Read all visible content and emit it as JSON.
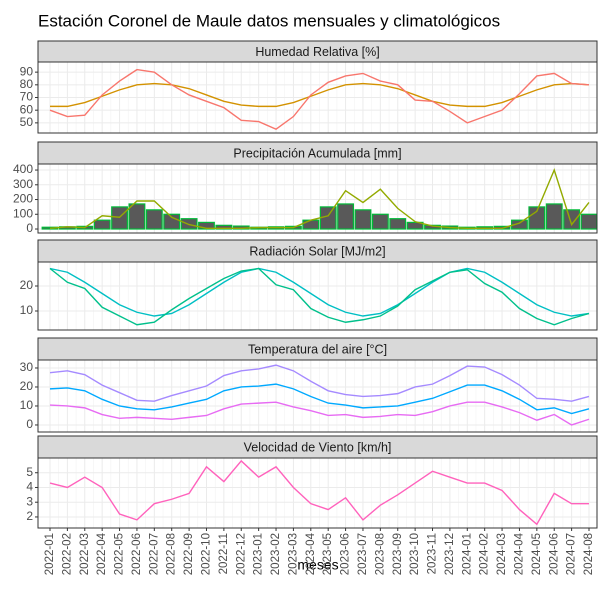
{
  "title": "Estación Coronel de Maule datos mensuales y climatológicos",
  "x_label": "meses",
  "categories": [
    "2022-01",
    "2022-02",
    "2022-03",
    "2022-04",
    "2022-05",
    "2022-06",
    "2022-07",
    "2022-08",
    "2022-09",
    "2022-10",
    "2022-11",
    "2022-12",
    "2023-01",
    "2023-02",
    "2023-03",
    "2023-04",
    "2023-05",
    "2023-06",
    "2023-07",
    "2023-08",
    "2023-09",
    "2023-10",
    "2023-11",
    "2023-12",
    "2024-01",
    "2024-02",
    "2024-03",
    "2024-04",
    "2024-05",
    "2024-06",
    "2024-07",
    "2024-08"
  ],
  "chart_data": [
    {
      "type": "line",
      "title": "Humedad Relativa [%]",
      "ylim": [
        42,
        98
      ],
      "yticks": [
        50,
        60,
        70,
        80,
        90
      ],
      "grid": true,
      "series": [
        {
          "color": "#D39200",
          "values": [
            63,
            63,
            66,
            71,
            76,
            80,
            81,
            80,
            77,
            72,
            67,
            64,
            63,
            63,
            66,
            71,
            76,
            80,
            81,
            80,
            77,
            72,
            67,
            64,
            63,
            63,
            66,
            71,
            76,
            80,
            81,
            80
          ]
        },
        {
          "color": "#F8766D",
          "values": [
            60,
            55,
            56,
            72,
            83,
            92,
            90,
            80,
            72,
            67,
            62,
            52,
            51,
            45,
            55,
            72,
            82,
            87,
            89,
            83,
            80,
            68,
            67,
            59,
            50,
            55,
            60,
            73,
            87,
            89,
            81,
            80
          ]
        }
      ]
    },
    {
      "type": "line",
      "title": "Precipitación Acumulada [mm]",
      "ylim": [
        -27,
        441
      ],
      "yticks": [
        0,
        100,
        200,
        300,
        400
      ],
      "grid": true,
      "series": [
        {
          "type": "bar",
          "color": "#595959",
          "stroke": "#00BA38",
          "values": [
            12,
            15,
            18,
            60,
            150,
            170,
            130,
            100,
            70,
            45,
            25,
            20,
            12,
            15,
            18,
            60,
            150,
            170,
            130,
            100,
            70,
            45,
            25,
            20,
            12,
            15,
            18,
            60,
            150,
            170,
            130,
            100
          ]
        },
        {
          "color": "#93AA00",
          "values": [
            5,
            15,
            10,
            90,
            80,
            190,
            190,
            80,
            30,
            5,
            5,
            5,
            10,
            10,
            10,
            60,
            90,
            260,
            180,
            270,
            140,
            50,
            20,
            10,
            5,
            5,
            5,
            40,
            120,
            400,
            30,
            180
          ]
        }
      ]
    },
    {
      "type": "line",
      "title": "Radiación Solar [MJ/m2]",
      "ylim": [
        2.4,
        29.6
      ],
      "yticks": [
        10,
        20
      ],
      "grid": true,
      "series": [
        {
          "color": "#00BFC4",
          "values": [
            27,
            25.5,
            21.5,
            17,
            12.5,
            9.5,
            8,
            9,
            12.5,
            17,
            21.5,
            25.5,
            27,
            25.5,
            21.5,
            17,
            12.5,
            9.5,
            8,
            9,
            12.5,
            17,
            21.5,
            25.5,
            27,
            25.5,
            21.5,
            17,
            12.5,
            9.5,
            8,
            9
          ]
        },
        {
          "color": "#00C08B",
          "values": [
            27,
            21.5,
            19,
            11.5,
            8,
            4.5,
            5.5,
            10.5,
            15,
            19,
            23,
            26,
            27,
            20.5,
            18.5,
            11,
            7.5,
            5.5,
            6.5,
            8,
            12,
            18.5,
            22,
            25.5,
            26.5,
            21,
            17.5,
            11,
            7,
            4.5,
            7,
            9
          ]
        }
      ]
    },
    {
      "type": "line",
      "title": "Temperatura del aire [°C]",
      "ylim": [
        -3.7,
        34.2
      ],
      "yticks": [
        0,
        10,
        20,
        30
      ],
      "grid": true,
      "series": [
        {
          "color": "#A58AFF",
          "values": [
            27.5,
            28.5,
            26.5,
            21,
            17,
            13,
            12.5,
            15.5,
            18,
            20.5,
            26,
            28.5,
            29.5,
            31.5,
            28.5,
            23,
            18,
            16,
            15,
            15.5,
            16.5,
            20,
            21.5,
            26,
            31,
            30.5,
            26.5,
            21,
            14,
            13.5,
            12.5,
            15
          ]
        },
        {
          "color": "#00A9FF",
          "values": [
            19,
            19.5,
            18,
            13.5,
            10,
            8.5,
            8,
            9.5,
            11.5,
            13.5,
            18,
            20,
            20.5,
            21.5,
            19,
            15,
            11.5,
            10.5,
            9,
            9.5,
            10,
            12,
            14,
            17.5,
            21,
            21,
            18,
            13.5,
            8,
            9,
            6,
            8.5
          ]
        },
        {
          "color": "#E76BF3",
          "values": [
            10.5,
            10,
            9,
            5.5,
            3.5,
            4,
            3.5,
            3,
            4,
            5,
            8.5,
            11,
            11.5,
            12,
            9.5,
            7.5,
            5,
            5.5,
            4,
            4.5,
            5.5,
            5,
            7,
            10,
            12,
            12,
            9.5,
            6.5,
            2.5,
            5.5,
            0,
            3
          ]
        }
      ]
    },
    {
      "type": "line",
      "title": "Velocidad de Viento [km/h]",
      "ylim": [
        1.25,
        6.0
      ],
      "yticks": [
        2,
        3,
        4,
        5
      ],
      "grid": true,
      "series": [
        {
          "color": "#FF62BC",
          "values": [
            4.3,
            4.0,
            4.7,
            4.0,
            2.2,
            1.8,
            2.9,
            3.2,
            3.6,
            5.4,
            4.4,
            5.8,
            4.7,
            5.4,
            4.0,
            2.9,
            2.5,
            3.3,
            1.8,
            2.8,
            3.5,
            4.3,
            5.1,
            4.7,
            4.3,
            4.3,
            3.8,
            2.5,
            1.5,
            3.6,
            2.9,
            2.9
          ]
        }
      ]
    }
  ]
}
